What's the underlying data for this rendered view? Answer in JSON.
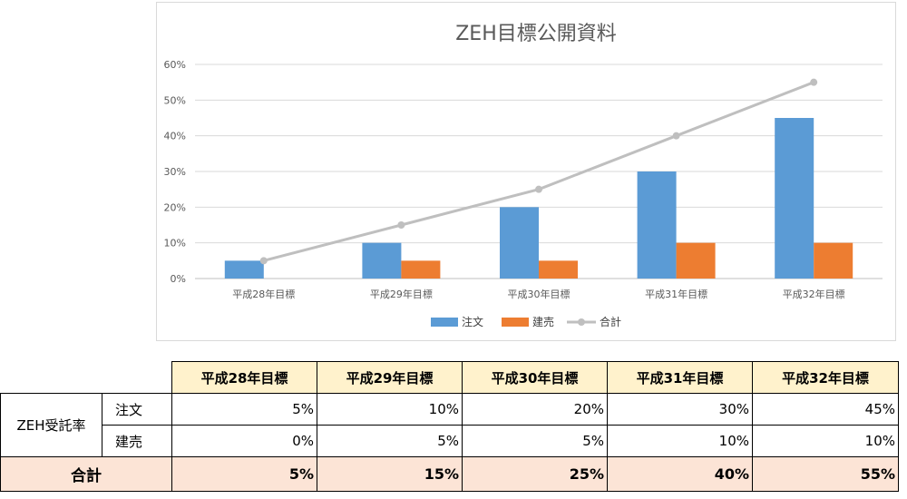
{
  "chart_data": {
    "type": "bar",
    "title": "ZEH目標公開資料",
    "categories": [
      "平成28年目標",
      "平成29年目標",
      "平成30年目標",
      "平成31年目標",
      "平成32年目標"
    ],
    "series": [
      {
        "name": "注文",
        "type": "bar",
        "color": "#5b9bd5",
        "values": [
          5,
          10,
          20,
          30,
          45
        ]
      },
      {
        "name": "建売",
        "type": "bar",
        "color": "#ed7d31",
        "values": [
          0,
          5,
          5,
          10,
          10
        ]
      },
      {
        "name": "合計",
        "type": "line",
        "color": "#bfbfbf",
        "values": [
          5,
          15,
          25,
          40,
          55
        ]
      }
    ],
    "ylim": [
      0,
      60
    ],
    "yticks": [
      "0%",
      "10%",
      "20%",
      "30%",
      "40%",
      "50%",
      "60%"
    ],
    "grid": true,
    "legend": "bottom"
  },
  "table": {
    "headers": [
      "平成28年目標",
      "平成29年目標",
      "平成30年目標",
      "平成31年目標",
      "平成32年目標"
    ],
    "group_label": "ZEH受託率",
    "rows": [
      {
        "label": "注文",
        "values": [
          "5%",
          "10%",
          "20%",
          "30%",
          "45%"
        ]
      },
      {
        "label": "建売",
        "values": [
          "0%",
          "5%",
          "5%",
          "10%",
          "10%"
        ]
      }
    ],
    "total": {
      "label": "合計",
      "values": [
        "5%",
        "15%",
        "25%",
        "40%",
        "55%"
      ]
    }
  }
}
